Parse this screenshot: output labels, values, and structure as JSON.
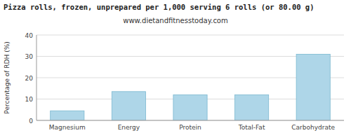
{
  "chart_data": {
    "type": "bar",
    "title": "Pizza rolls, frozen, unprepared per 1,000 serving 6 rolls (or 80.00 g)",
    "subtitle": "www.dietandfitnesstoday.com",
    "categories": [
      "Magnesium",
      "Energy",
      "Protein",
      "Total-Fat",
      "Carbohydrate"
    ],
    "values": [
      4.5,
      13.5,
      12.0,
      12.0,
      31.0
    ],
    "color": "#aed6e8",
    "ylabel": "Percentage of RDH (%)",
    "ylim": [
      0,
      40
    ],
    "yticks": [
      0,
      10,
      20,
      30,
      40
    ],
    "grid": true
  }
}
